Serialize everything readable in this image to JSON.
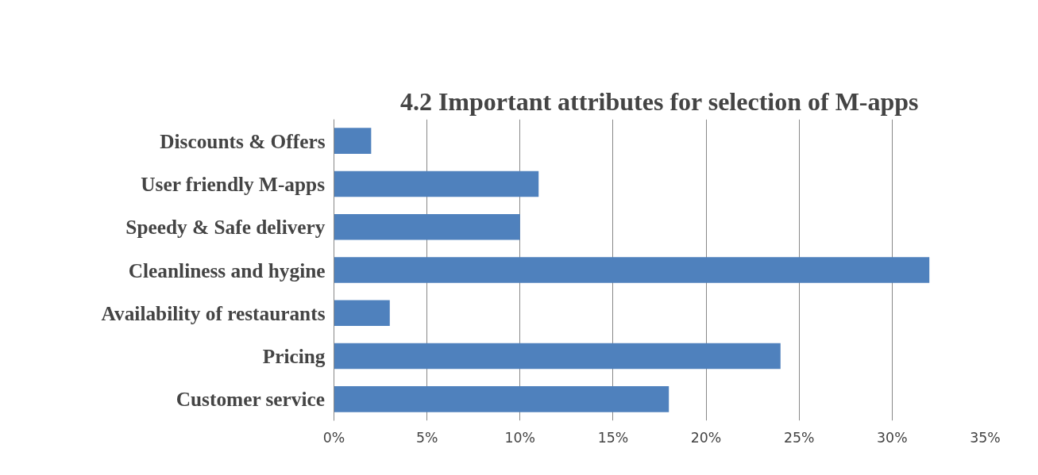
{
  "chart_data": {
    "type": "bar",
    "orientation": "horizontal",
    "title": "4.2 Important attributes for selection of M-apps",
    "categories": [
      "Discounts & Offers",
      "User friendly M-apps",
      "Speedy & Safe delivery",
      "Cleanliness and hygine",
      "Availability of restaurants",
      "Pricing",
      "Customer service"
    ],
    "values": [
      2,
      11,
      10,
      32,
      3,
      24,
      18
    ],
    "color": "#4f81bd",
    "xlim": [
      0,
      35
    ],
    "xticks": [
      {
        "value": 0,
        "label": "0%"
      },
      {
        "value": 5,
        "label": "5%"
      },
      {
        "value": 10,
        "label": "10%"
      },
      {
        "value": 15,
        "label": "15%"
      },
      {
        "value": 20,
        "label": "20%"
      },
      {
        "value": 25,
        "label": "25%"
      },
      {
        "value": 30,
        "label": "30%"
      },
      {
        "value": 35,
        "label": "35%"
      }
    ],
    "grid": "x"
  }
}
